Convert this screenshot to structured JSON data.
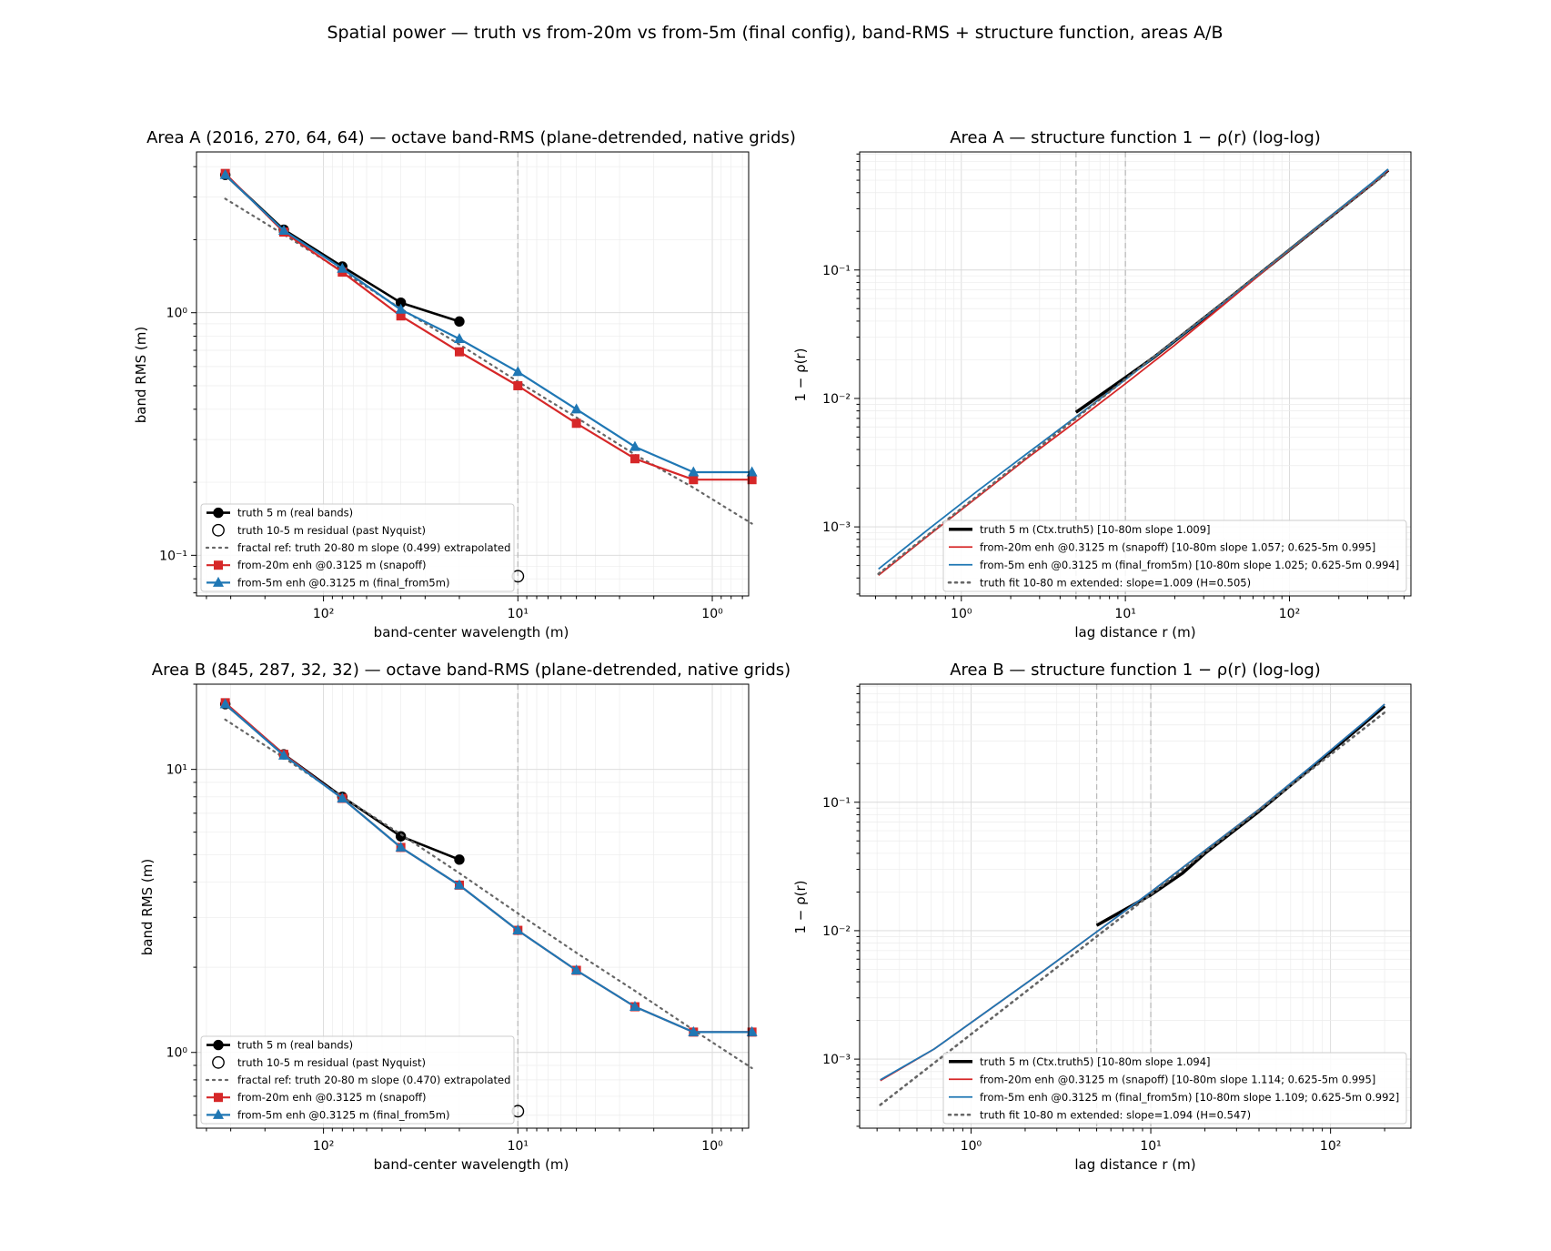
{
  "figure": {
    "suptitle": "Spatial power — truth vs from-20m vs from-5m (final config), band-RMS + structure function, areas A/B"
  },
  "colors": {
    "truth": "#000000",
    "from20": "#d62728",
    "from5": "#1f77b4",
    "ref": "#666666",
    "vline": "#bbbbbb"
  },
  "chart_data": [
    {
      "id": "areaA_band",
      "type": "line",
      "title": "Area A (2016, 270, 64, 64) — octave band-RMS (plane-detrended, native grids)",
      "xlabel": "band-center wavelength (m)",
      "ylabel": "band RMS (m)",
      "xscale": "log",
      "yscale": "log",
      "x_inverted": true,
      "xlim": [
        450,
        0.65
      ],
      "ylim": [
        0.068,
        4.6
      ],
      "xticks": [
        {
          "v": 100,
          "label": "10²"
        },
        {
          "v": 10,
          "label": "10¹"
        },
        {
          "v": 1,
          "label": "10⁰"
        }
      ],
      "yticks": [
        {
          "v": 1,
          "label": "10⁰"
        },
        {
          "v": 0.1,
          "label": "10⁻¹"
        }
      ],
      "vlines": [
        10
      ],
      "grid": true,
      "legend_position": "lower-left",
      "series": [
        {
          "name": "truth 5 m (real bands)",
          "style": "truth",
          "x": [
            320,
            160,
            80,
            40,
            20
          ],
          "y": [
            3.7,
            2.2,
            1.55,
            1.1,
            0.92
          ]
        },
        {
          "name": "truth 10-5 m residual (past Nyquist)",
          "style": "open",
          "x": [
            10
          ],
          "y": [
            0.082
          ]
        },
        {
          "name": "fractal ref: truth 20-80 m slope (0.499) extrapolated",
          "style": "ref",
          "x": [
            320,
            160,
            80,
            40,
            20,
            10,
            5,
            2.5,
            1.25,
            0.625
          ],
          "y": [
            2.95,
            2.1,
            1.48,
            1.04,
            0.74,
            0.52,
            0.37,
            0.26,
            0.19,
            0.135
          ]
        },
        {
          "name": "from-20m enh @0.3125 m (snapoff)",
          "style": "from20",
          "x": [
            320,
            160,
            80,
            40,
            20,
            10,
            5,
            2.5,
            1.25,
            0.625
          ],
          "y": [
            3.75,
            2.15,
            1.47,
            0.97,
            0.69,
            0.5,
            0.35,
            0.25,
            0.205,
            0.205
          ]
        },
        {
          "name": "from-5m enh @0.3125 m (final_from5m)",
          "style": "from5",
          "x": [
            320,
            160,
            80,
            40,
            20,
            10,
            5,
            2.5,
            1.25,
            0.625
          ],
          "y": [
            3.7,
            2.18,
            1.52,
            1.03,
            0.78,
            0.57,
            0.4,
            0.28,
            0.22,
            0.22
          ]
        }
      ]
    },
    {
      "id": "areaA_sf",
      "type": "line",
      "title": "Area A — structure function 1 − ρ(r) (log-log)",
      "xlabel": "lag distance r (m)",
      "ylabel": "1 − ρ(r)",
      "xscale": "log",
      "yscale": "log",
      "xlim": [
        0.24,
        550
      ],
      "ylim": [
        0.00029,
        0.83
      ],
      "xticks": [
        {
          "v": 1,
          "label": "10⁰"
        },
        {
          "v": 10,
          "label": "10¹"
        },
        {
          "v": 100,
          "label": "10²"
        }
      ],
      "yticks": [
        {
          "v": 0.001,
          "label": "10⁻³"
        },
        {
          "v": 0.01,
          "label": "10⁻²"
        },
        {
          "v": 0.1,
          "label": "10⁻¹"
        }
      ],
      "vlines": [
        5,
        10
      ],
      "grid": true,
      "legend_position": "lower-right",
      "series": [
        {
          "name": "truth 5 m (Ctx.truth5)  [10-80m slope 1.009]",
          "style": "truth_thick",
          "x": [
            5,
            10,
            15,
            20,
            40,
            80,
            160,
            320,
            400
          ],
          "y": [
            0.0078,
            0.0145,
            0.021,
            0.028,
            0.056,
            0.114,
            0.232,
            0.47,
            0.6
          ]
        },
        {
          "name": "from-20m enh @0.3125 m (snapoff)  [10-80m slope 1.057; 0.625-5m 0.995]",
          "style": "from20_line",
          "x": [
            0.3125,
            0.625,
            1.25,
            2.5,
            5,
            10,
            20,
            40,
            80,
            160,
            320,
            400
          ],
          "y": [
            0.00042,
            0.00085,
            0.0017,
            0.0034,
            0.0066,
            0.013,
            0.026,
            0.054,
            0.113,
            0.232,
            0.47,
            0.6
          ]
        },
        {
          "name": "from-5m enh @0.3125 m (final_from5m)  [10-80m slope 1.025; 0.625-5m 0.994]",
          "style": "from5_line",
          "x": [
            0.3125,
            0.625,
            1.25,
            2.5,
            5,
            10,
            20,
            40,
            80,
            160,
            320,
            400
          ],
          "y": [
            0.00047,
            0.00095,
            0.0019,
            0.0037,
            0.0072,
            0.014,
            0.028,
            0.056,
            0.115,
            0.235,
            0.48,
            0.61
          ]
        },
        {
          "name": "truth fit 10-80 m extended: slope=1.009 (H=0.505)",
          "style": "fit",
          "x": [
            0.3125,
            400
          ],
          "y": [
            0.00043,
            0.58
          ]
        }
      ]
    },
    {
      "id": "areaB_band",
      "type": "line",
      "title": "Area B (845, 287, 32, 32) — octave band-RMS (plane-detrended, native grids)",
      "xlabel": "band-center wavelength (m)",
      "ylabel": "band RMS (m)",
      "xscale": "log",
      "yscale": "log",
      "x_inverted": true,
      "xlim": [
        450,
        0.65
      ],
      "ylim": [
        0.54,
        20
      ],
      "xticks": [
        {
          "v": 100,
          "label": "10²"
        },
        {
          "v": 10,
          "label": "10¹"
        },
        {
          "v": 1,
          "label": "10⁰"
        }
      ],
      "yticks": [
        {
          "v": 10,
          "label": "10¹"
        },
        {
          "v": 1,
          "label": "10⁰"
        }
      ],
      "vlines": [
        10
      ],
      "grid": true,
      "legend_position": "lower-left",
      "series": [
        {
          "name": "truth 5 m (real bands)",
          "style": "truth",
          "x": [
            320,
            160,
            80,
            40,
            20
          ],
          "y": [
            17.0,
            11.3,
            8.0,
            5.8,
            4.8
          ]
        },
        {
          "name": "truth 10-5 m residual (past Nyquist)",
          "style": "open",
          "x": [
            10
          ],
          "y": [
            0.62
          ]
        },
        {
          "name": "fractal ref: truth 20-80 m slope (0.470) extrapolated",
          "style": "ref",
          "x": [
            320,
            160,
            80,
            40,
            20,
            10,
            5,
            2.5,
            1.25,
            0.625
          ],
          "y": [
            15.0,
            11.0,
            8.0,
            5.9,
            4.3,
            3.1,
            2.25,
            1.65,
            1.2,
            0.88
          ]
        },
        {
          "name": "from-20m enh @0.3125 m (snapoff)",
          "style": "from20",
          "x": [
            320,
            160,
            80,
            40,
            20,
            10,
            5,
            2.5,
            1.25,
            0.625
          ],
          "y": [
            17.2,
            11.3,
            7.9,
            5.3,
            3.9,
            2.7,
            1.95,
            1.45,
            1.18,
            1.18
          ]
        },
        {
          "name": "from-5m enh @0.3125 m (final_from5m)",
          "style": "from5",
          "x": [
            320,
            160,
            80,
            40,
            20,
            10,
            5,
            2.5,
            1.25,
            0.625
          ],
          "y": [
            17.0,
            11.2,
            7.9,
            5.3,
            3.9,
            2.7,
            1.95,
            1.45,
            1.18,
            1.18
          ]
        }
      ]
    },
    {
      "id": "areaB_sf",
      "type": "line",
      "title": "Area B — structure function 1 − ρ(r) (log-log)",
      "xlabel": "lag distance r (m)",
      "ylabel": "1 − ρ(r)",
      "xscale": "log",
      "yscale": "log",
      "xlim": [
        0.24,
        280
      ],
      "ylim": [
        0.00029,
        0.83
      ],
      "xticks": [
        {
          "v": 1,
          "label": "10⁰"
        },
        {
          "v": 10,
          "label": "10¹"
        },
        {
          "v": 100,
          "label": "10²"
        }
      ],
      "yticks": [
        {
          "v": 0.001,
          "label": "10⁻³"
        },
        {
          "v": 0.01,
          "label": "10⁻²"
        },
        {
          "v": 0.1,
          "label": "10⁻¹"
        }
      ],
      "vlines": [
        5,
        10
      ],
      "grid": true,
      "legend_position": "lower-right",
      "series": [
        {
          "name": "truth 5 m (Ctx.truth5)  [10-80m slope 1.094]",
          "style": "truth_thick",
          "x": [
            5,
            10,
            15,
            20,
            40,
            80,
            160,
            200
          ],
          "y": [
            0.011,
            0.019,
            0.028,
            0.04,
            0.085,
            0.19,
            0.43,
            0.56
          ]
        },
        {
          "name": "from-20m enh @0.3125 m (snapoff)  [10-80m slope 1.114; 0.625-5m 0.995]",
          "style": "from20_line",
          "x": [
            0.3125,
            0.625,
            1.25,
            2.5,
            5,
            10,
            20,
            40,
            80,
            160,
            200
          ],
          "y": [
            0.00068,
            0.0012,
            0.0024,
            0.0048,
            0.0098,
            0.02,
            0.042,
            0.088,
            0.195,
            0.44,
            0.58
          ]
        },
        {
          "name": "from-5m enh @0.3125 m (final_from5m)  [10-80m slope 1.109; 0.625-5m 0.992]",
          "style": "from5_line",
          "x": [
            0.3125,
            0.625,
            1.25,
            2.5,
            5,
            10,
            20,
            40,
            80,
            160,
            200
          ],
          "y": [
            0.00069,
            0.0012,
            0.0024,
            0.0048,
            0.0098,
            0.02,
            0.042,
            0.088,
            0.195,
            0.44,
            0.58
          ]
        },
        {
          "name": "truth fit 10-80 m extended: slope=1.094 (H=0.547)",
          "style": "fit",
          "x": [
            0.3125,
            200
          ],
          "y": [
            0.00044,
            0.5
          ]
        }
      ]
    }
  ]
}
